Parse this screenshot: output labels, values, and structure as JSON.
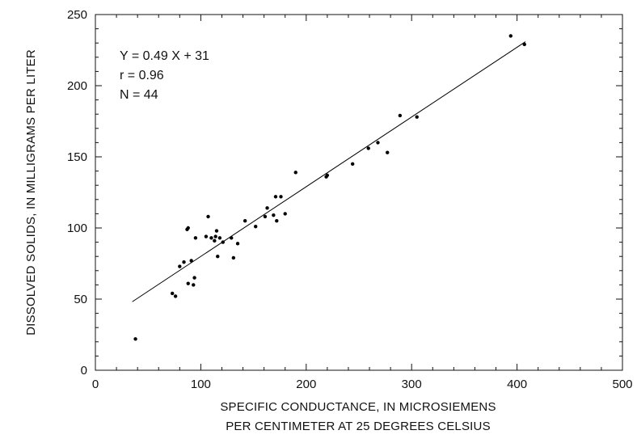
{
  "chart_data": {
    "type": "scatter",
    "title": "",
    "xlabel_lines": [
      "SPECIFIC CONDUCTANCE, IN MICROSIEMENS",
      "PER CENTIMETER AT 25 DEGREES CELSIUS"
    ],
    "ylabel": "DISSOLVED SOLIDS, IN MILLIGRAMS PER LITER",
    "xlim": [
      0,
      500
    ],
    "ylim": [
      0,
      250
    ],
    "x_major_ticks": [
      0,
      100,
      200,
      300,
      400,
      500
    ],
    "x_tick_labels": [
      "0",
      "100",
      "200",
      "300",
      "400",
      "500"
    ],
    "x_minor_step": 20,
    "y_major_ticks": [
      0,
      50,
      100,
      150,
      200,
      250
    ],
    "y_tick_labels": [
      "0",
      "50",
      "100",
      "150",
      "200",
      "250"
    ],
    "y_minor_step": 10,
    "grid": false,
    "annotations": [
      "Y = 0.49 X + 31",
      "r = 0.96",
      "N = 44"
    ],
    "regression": {
      "slope": 0.49,
      "intercept": 31,
      "x_range": [
        35,
        408
      ]
    },
    "marker_color": "#000000",
    "line_color": "#000000",
    "points": [
      [
        38,
        22
      ],
      [
        73,
        54
      ],
      [
        76,
        52
      ],
      [
        80,
        73
      ],
      [
        84,
        76
      ],
      [
        87,
        99
      ],
      [
        88,
        100
      ],
      [
        88,
        61
      ],
      [
        91,
        77
      ],
      [
        93,
        60
      ],
      [
        94,
        65
      ],
      [
        95,
        93
      ],
      [
        105,
        94
      ],
      [
        107,
        108
      ],
      [
        110,
        93
      ],
      [
        113,
        91
      ],
      [
        114,
        94
      ],
      [
        115,
        98
      ],
      [
        116,
        80
      ],
      [
        118,
        93
      ],
      [
        121,
        90
      ],
      [
        129,
        93
      ],
      [
        131,
        79
      ],
      [
        135,
        89
      ],
      [
        142,
        105
      ],
      [
        152,
        101
      ],
      [
        161,
        108
      ],
      [
        163,
        114
      ],
      [
        169,
        109
      ],
      [
        171,
        122
      ],
      [
        172,
        105
      ],
      [
        176,
        122
      ],
      [
        180,
        110
      ],
      [
        190,
        139
      ],
      [
        219,
        136
      ],
      [
        220,
        137
      ],
      [
        244,
        145
      ],
      [
        259,
        156
      ],
      [
        268,
        160
      ],
      [
        277,
        153
      ],
      [
        289,
        179
      ],
      [
        305,
        178
      ],
      [
        394,
        235
      ],
      [
        407,
        229
      ]
    ]
  }
}
